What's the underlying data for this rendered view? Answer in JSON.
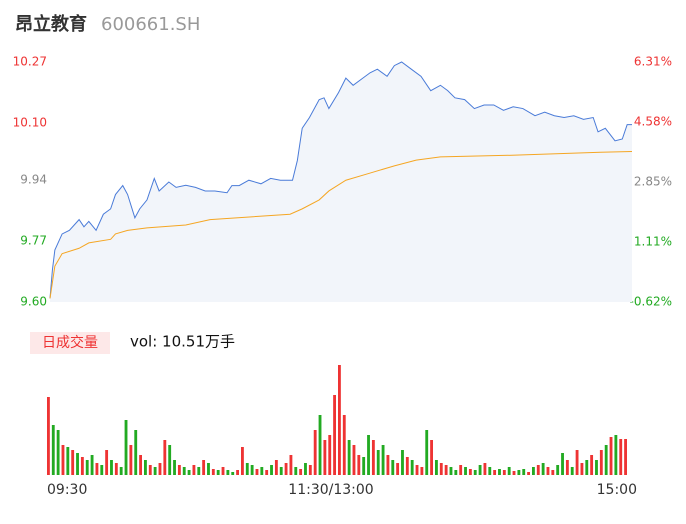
{
  "header": {
    "name": "昂立教育",
    "code": "600661.SH"
  },
  "chart_data": {
    "type": "line",
    "xlim": [
      0,
      240
    ],
    "xticks": [
      {
        "value": 0,
        "label": "09:30"
      },
      {
        "value": 120,
        "label": "11:30/13:00"
      },
      {
        "value": 240,
        "label": "15:00"
      }
    ],
    "ylim": [
      9.6,
      10.27
    ],
    "yticks": [
      {
        "value": 9.6,
        "label": "9.60"
      },
      9.77,
      9.94,
      {
        "value": 10.1,
        "label": "10.10"
      },
      10.27
    ],
    "ytick_colors": [
      "#22aa22",
      "#22aa22",
      "#888888",
      "#ee3333",
      "#ee3333"
    ],
    "y2lim": [
      -0.62,
      6.31
    ],
    "y2ticks": [
      {
        "value": -0.62,
        "label": "-0.62%"
      },
      {
        "value": 1.11,
        "label": "1.11%"
      },
      {
        "value": 2.85,
        "label": "2.85%"
      },
      {
        "value": 4.58,
        "label": "4.58%"
      },
      {
        "value": 6.31,
        "label": "6.31%"
      }
    ],
    "y2tick_colors": [
      "#22aa22",
      "#22aa22",
      "#888888",
      "#ee3333",
      "#ee3333"
    ],
    "area_color": "#f2f5fa",
    "series": [
      {
        "color": "#4a7bd8",
        "x": [
          0,
          1,
          2,
          5,
          8,
          12,
          14,
          16,
          19,
          22,
          25,
          27,
          30,
          32,
          35,
          37,
          40,
          43,
          45,
          49,
          52,
          56,
          60,
          64,
          68,
          73,
          75,
          78,
          82,
          87,
          91,
          95,
          100,
          102,
          104,
          107,
          111,
          113,
          115,
          119,
          122,
          125,
          129,
          132,
          135,
          139,
          142,
          145,
          149,
          153,
          157,
          161,
          164,
          167,
          171,
          175,
          179,
          183,
          187,
          191,
          195,
          200,
          204,
          208,
          212,
          216,
          220,
          224,
          226,
          229,
          233,
          236,
          238,
          240
        ],
        "values": [
          9.61,
          9.69,
          9.745,
          9.79,
          9.8,
          9.83,
          9.81,
          9.825,
          9.8,
          9.845,
          9.86,
          9.9,
          9.925,
          9.9,
          9.835,
          9.86,
          9.885,
          9.945,
          9.91,
          9.935,
          9.92,
          9.926,
          9.92,
          9.91,
          9.91,
          9.905,
          9.925,
          9.925,
          9.94,
          9.93,
          9.945,
          9.94,
          9.94,
          9.995,
          10.085,
          10.115,
          10.165,
          10.17,
          10.14,
          10.185,
          10.225,
          10.205,
          10.225,
          10.24,
          10.25,
          10.23,
          10.26,
          10.27,
          10.25,
          10.23,
          10.19,
          10.205,
          10.19,
          10.17,
          10.165,
          10.14,
          10.15,
          10.15,
          10.135,
          10.145,
          10.14,
          10.12,
          10.13,
          10.12,
          10.115,
          10.12,
          10.11,
          10.115,
          10.075,
          10.085,
          10.05,
          10.055,
          10.095,
          10.095
        ]
      },
      {
        "color": "#f5a623",
        "x": [
          0,
          2,
          5,
          12,
          16,
          25,
          27,
          32,
          40,
          56,
          66,
          99,
          104,
          111,
          115,
          122,
          132,
          142,
          151,
          161,
          192,
          227,
          240
        ],
        "values": [
          9.61,
          9.7,
          9.735,
          9.75,
          9.765,
          9.775,
          9.79,
          9.8,
          9.807,
          9.815,
          9.83,
          9.845,
          9.86,
          9.885,
          9.91,
          9.94,
          9.96,
          9.98,
          9.996,
          10.005,
          10.01,
          10.018,
          10.02
        ]
      }
    ],
    "volume": {
      "title": "日成交量",
      "total": "vol: 10.51万手",
      "palette": {
        "r": "#ee3333",
        "g": "#22aa22"
      },
      "values": [
        78,
        50,
        45,
        30,
        28,
        25,
        22,
        18,
        15,
        20,
        12,
        10,
        25,
        15,
        12,
        8,
        55,
        30,
        45,
        20,
        15,
        10,
        8,
        12,
        35,
        30,
        15,
        10,
        8,
        5,
        10,
        8,
        15,
        12,
        6,
        5,
        8,
        5,
        3,
        5,
        28,
        12,
        10,
        6,
        8,
        5,
        10,
        15,
        8,
        12,
        20,
        8,
        6,
        12,
        10,
        45,
        60,
        35,
        40,
        80,
        110,
        60,
        35,
        30,
        20,
        18,
        40,
        35,
        25,
        30,
        20,
        15,
        12,
        25,
        18,
        15,
        10,
        8,
        45,
        35,
        15,
        12,
        10,
        8,
        5,
        10,
        8,
        6,
        5,
        10,
        12,
        8,
        5,
        6,
        5,
        8,
        4,
        5,
        6,
        3,
        8,
        10,
        12,
        8,
        5,
        10,
        22,
        15,
        8,
        25,
        12,
        15,
        20,
        15,
        25,
        30,
        38,
        40,
        36,
        36
      ],
      "colors": [
        "r",
        "g",
        "g",
        "r",
        "g",
        "r",
        "g",
        "r",
        "g",
        "g",
        "r",
        "g",
        "r",
        "g",
        "r",
        "g",
        "g",
        "r",
        "g",
        "r",
        "g",
        "r",
        "g",
        "r",
        "r",
        "g",
        "g",
        "r",
        "g",
        "g",
        "r",
        "g",
        "r",
        "g",
        "r",
        "g",
        "r",
        "g",
        "g",
        "r",
        "r",
        "g",
        "g",
        "r",
        "g",
        "r",
        "g",
        "r",
        "g",
        "r",
        "r",
        "g",
        "r",
        "g",
        "r",
        "r",
        "g",
        "r",
        "r",
        "r",
        "r",
        "r",
        "g",
        "r",
        "r",
        "g",
        "g",
        "r",
        "g",
        "g",
        "r",
        "g",
        "r",
        "g",
        "r",
        "g",
        "r",
        "r",
        "g",
        "r",
        "g",
        "r",
        "r",
        "g",
        "g",
        "r",
        "g",
        "r",
        "g",
        "g",
        "r",
        "g",
        "r",
        "g",
        "r",
        "g",
        "r",
        "g",
        "g",
        "r",
        "g",
        "r",
        "g",
        "r",
        "r",
        "g",
        "g",
        "r",
        "g",
        "r",
        "r",
        "g",
        "r",
        "g",
        "r",
        "g",
        "r",
        "g",
        "r",
        "r"
      ]
    }
  }
}
